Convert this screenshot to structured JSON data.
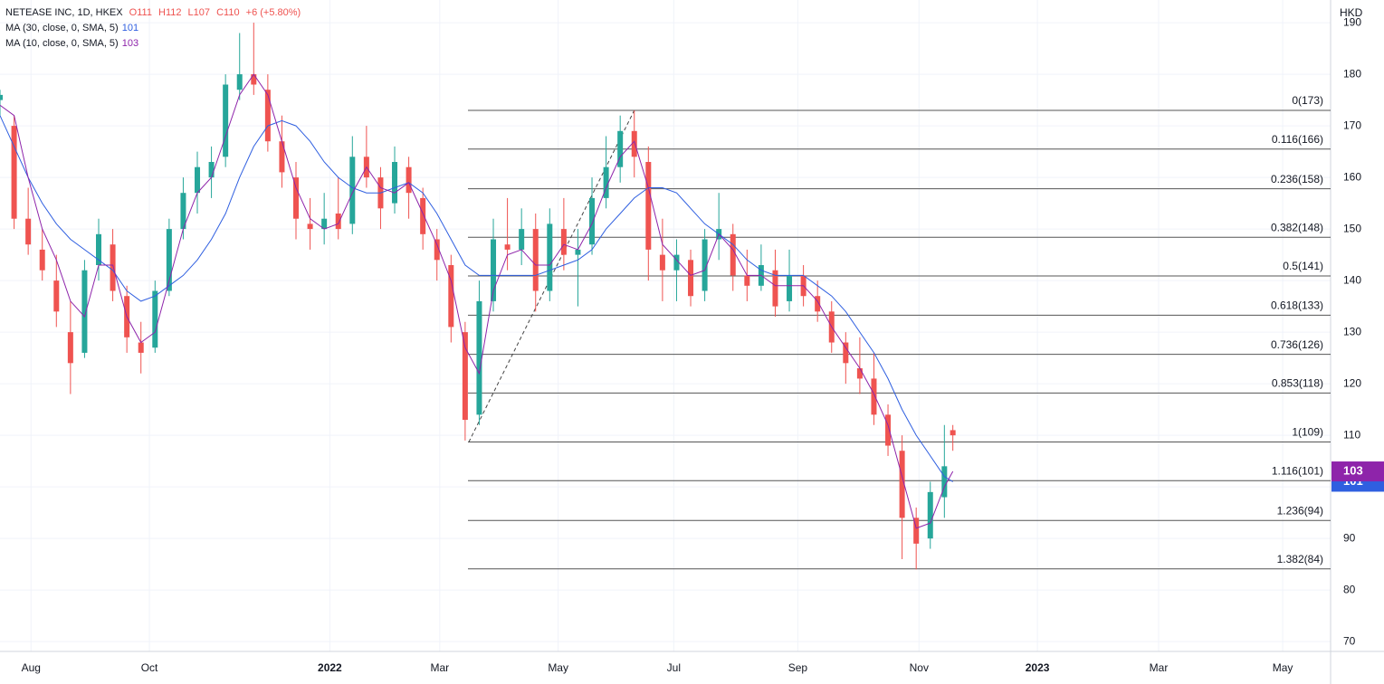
{
  "chart_data": {
    "type": "candlestick",
    "header": {
      "symbol": "NETEASE INC, 1D, HKEX",
      "quote": [
        "O111",
        "H112",
        "L107",
        "C110",
        "+6 (+5.80%)"
      ]
    },
    "currency": "HKD",
    "x": [
      0,
      5,
      10,
      15,
      20,
      25,
      30,
      35,
      40,
      45,
      50,
      55,
      60,
      65,
      70,
      75,
      80,
      85,
      90,
      95,
      100,
      105,
      110,
      115,
      120,
      125,
      130,
      135,
      140,
      145,
      150,
      155,
      160,
      165,
      170,
      175,
      180,
      185,
      190,
      195,
      200,
      205,
      210,
      215,
      220,
      225,
      230,
      235,
      240,
      245,
      250,
      255,
      260,
      265,
      270,
      275,
      280,
      285,
      290,
      295,
      300,
      305,
      310,
      315,
      320,
      325,
      330,
      335,
      338
    ],
    "open": [
      175,
      170,
      152,
      146,
      140,
      130,
      126,
      143,
      147,
      137,
      128,
      127,
      138,
      150,
      157,
      160,
      164,
      177,
      180,
      177,
      167,
      160,
      151,
      150,
      153,
      151,
      164,
      160,
      155,
      162,
      156,
      148,
      143,
      130,
      114,
      136,
      147,
      146,
      150,
      138,
      150,
      145,
      147,
      156,
      162,
      169,
      163,
      145,
      142,
      144,
      138,
      148,
      149,
      141,
      139,
      142,
      136,
      141,
      137,
      134,
      128,
      123,
      121,
      114,
      107,
      94,
      90,
      98,
      111
    ],
    "high": [
      177,
      172,
      158,
      150,
      145,
      136,
      144,
      152,
      150,
      139,
      132,
      140,
      152,
      160,
      165,
      166,
      180,
      188,
      190,
      180,
      172,
      163,
      156,
      157,
      160,
      168,
      170,
      162,
      166,
      164,
      158,
      150,
      145,
      132,
      140,
      152,
      156,
      154,
      153,
      154,
      156,
      150,
      160,
      168,
      172,
      173,
      166,
      152,
      148,
      146,
      150,
      157,
      151,
      146,
      147,
      146,
      146,
      143,
      140,
      136,
      130,
      129,
      126,
      116,
      110,
      96,
      101,
      112,
      112
    ],
    "low": [
      172,
      150,
      145,
      140,
      131,
      118,
      125,
      140,
      136,
      126,
      122,
      126,
      137,
      148,
      153,
      156,
      162,
      175,
      176,
      165,
      158,
      148,
      146,
      147,
      148,
      149,
      158,
      150,
      153,
      152,
      146,
      140,
      128,
      109,
      112,
      134,
      142,
      143,
      134,
      136,
      142,
      135,
      145,
      154,
      159,
      160,
      140,
      136,
      136,
      135,
      136,
      144,
      138,
      136,
      138,
      133,
      134,
      135,
      132,
      126,
      120,
      118,
      112,
      106,
      86,
      84,
      88,
      94,
      107
    ],
    "close": [
      176,
      152,
      147,
      142,
      134,
      124,
      142,
      149,
      138,
      129,
      126,
      138,
      150,
      157,
      162,
      163,
      178,
      180,
      178,
      167,
      161,
      152,
      150,
      152,
      150,
      164,
      160,
      154,
      163,
      157,
      149,
      144,
      131,
      113,
      136,
      148,
      146,
      150,
      138,
      151,
      145,
      146,
      156,
      162,
      169,
      164,
      146,
      142,
      145,
      137,
      148,
      150,
      141,
      139,
      143,
      135,
      141,
      137,
      134,
      128,
      124,
      121,
      114,
      108,
      94,
      89,
      99,
      104,
      110
    ],
    "up_color": "#26a69a",
    "down_color": "#ef5350",
    "series": [
      {
        "name": "MA (30, close, 0, SMA, 5)",
        "color": "#2f5fe0",
        "values": [
          172,
          166,
          160,
          155,
          151,
          148,
          146,
          144,
          142,
          138,
          136,
          137,
          139,
          141,
          144,
          148,
          153,
          160,
          166,
          170,
          171,
          170,
          167,
          163,
          160,
          158,
          157,
          157,
          158,
          159,
          157,
          153,
          148,
          143,
          141,
          141,
          141,
          141,
          141,
          142,
          143,
          144,
          146,
          150,
          153,
          156,
          158,
          158,
          157,
          154,
          151,
          149,
          147,
          144,
          142,
          141,
          141,
          141,
          139,
          137,
          134,
          130,
          126,
          121,
          115,
          110,
          106,
          102,
          101
        ]
      },
      {
        "name": "MA (10, close, 0, SMA, 5)",
        "color": "#8e24aa",
        "values": [
          174,
          172,
          160,
          150,
          144,
          136,
          133,
          143,
          143,
          133,
          128,
          130,
          140,
          150,
          157,
          160,
          168,
          176,
          180,
          176,
          167,
          158,
          152,
          150,
          151,
          157,
          162,
          158,
          157,
          159,
          153,
          147,
          140,
          127,
          122,
          138,
          145,
          146,
          143,
          143,
          147,
          146,
          151,
          158,
          164,
          167,
          158,
          147,
          144,
          141,
          142,
          149,
          146,
          141,
          141,
          139,
          139,
          139,
          136,
          131,
          127,
          123,
          118,
          112,
          102,
          92,
          93,
          100,
          103
        ]
      }
    ],
    "fib": [
      {
        "value": 173,
        "label": "0(173)"
      },
      {
        "value": 165.5,
        "label": "0.116(166)"
      },
      {
        "value": 157.8,
        "label": "0.236(158)"
      },
      {
        "value": 148.4,
        "label": "0.382(148)"
      },
      {
        "value": 140.9,
        "label": "0.5(141)"
      },
      {
        "value": 133.3,
        "label": "0.618(133)"
      },
      {
        "value": 125.7,
        "label": "0.736(126)"
      },
      {
        "value": 118.2,
        "label": "0.853(118)"
      },
      {
        "value": 108.7,
        "label": "1(109)"
      },
      {
        "value": 101.2,
        "label": "1.116(101)"
      },
      {
        "value": 93.5,
        "label": "1.236(94)"
      },
      {
        "value": 84.1,
        "label": "1.382(84)"
      }
    ],
    "fib_x": [
      166,
      472
    ],
    "trend": {
      "x": [
        166.3,
        225
      ],
      "values": [
        108.7,
        173
      ]
    },
    "xlim": [
      0,
      472
    ],
    "xticks": [
      {
        "value": 11,
        "label": "Aug"
      },
      {
        "value": 53,
        "label": "Oct"
      },
      {
        "value": 117,
        "label": "2022"
      },
      {
        "value": 156,
        "label": "Mar"
      },
      {
        "value": 198,
        "label": "May"
      },
      {
        "value": 239,
        "label": "Jul"
      },
      {
        "value": 283,
        "label": "Sep"
      },
      {
        "value": 326,
        "label": "Nov"
      },
      {
        "value": 368,
        "label": "2023"
      },
      {
        "value": 411,
        "label": "Mar"
      },
      {
        "value": 455,
        "label": "May"
      }
    ],
    "ylim": [
      68.1,
      194.4
    ],
    "yticks": [
      70,
      80,
      90,
      100,
      110,
      120,
      130,
      140,
      150,
      160,
      170,
      180,
      190
    ],
    "grid": true
  }
}
